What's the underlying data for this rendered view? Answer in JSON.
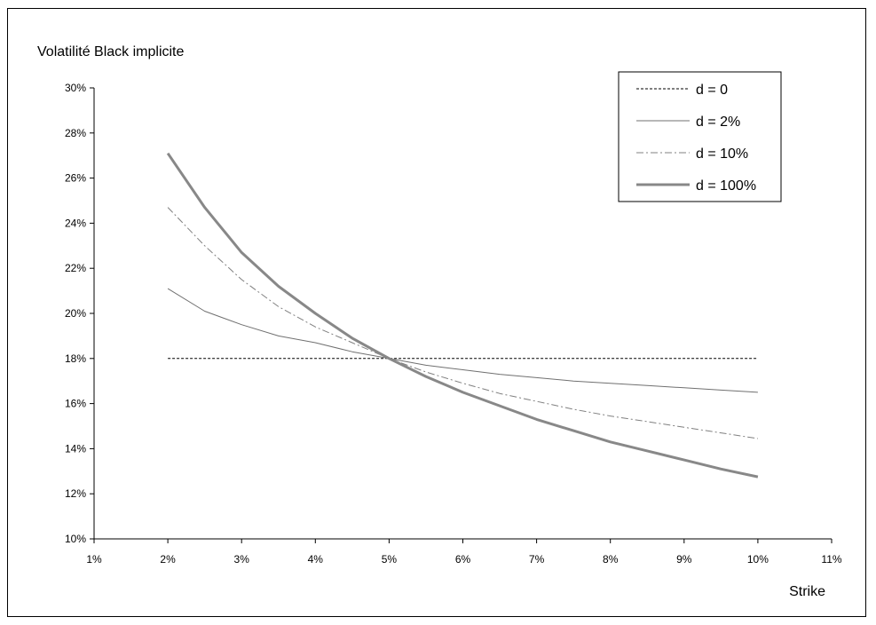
{
  "chart_data": {
    "type": "line",
    "title": "",
    "xlabel": "Strike",
    "ylabel": "Volatilité Black implicite",
    "xlim": [
      0.01,
      0.11
    ],
    "ylim": [
      0.1,
      0.3
    ],
    "x_ticks": [
      "1%",
      "2%",
      "3%",
      "4%",
      "5%",
      "6%",
      "7%",
      "8%",
      "9%",
      "10%",
      "11%"
    ],
    "y_ticks": [
      "10%",
      "12%",
      "14%",
      "16%",
      "18%",
      "20%",
      "22%",
      "24%",
      "26%",
      "28%",
      "30%"
    ],
    "grid": false,
    "legend_position": "top-right",
    "x": [
      0.02,
      0.025,
      0.03,
      0.035,
      0.04,
      0.045,
      0.05,
      0.055,
      0.06,
      0.065,
      0.07,
      0.075,
      0.08,
      0.085,
      0.09,
      0.095,
      0.1
    ],
    "series": [
      {
        "name": "d = 0",
        "style": "dotted",
        "color": "#000000",
        "values": [
          0.18,
          0.18,
          0.18,
          0.18,
          0.18,
          0.18,
          0.18,
          0.18,
          0.18,
          0.18,
          0.18,
          0.18,
          0.18,
          0.18,
          0.18,
          0.18,
          0.18
        ]
      },
      {
        "name": "d = 2%",
        "style": "thin",
        "color": "#707070",
        "values": [
          0.211,
          0.201,
          0.195,
          0.19,
          0.187,
          0.183,
          0.18,
          0.177,
          0.175,
          0.173,
          0.1715,
          0.17,
          0.169,
          0.168,
          0.167,
          0.166,
          0.165
        ]
      },
      {
        "name": "d = 10%",
        "style": "dashdot",
        "color": "#808080",
        "values": [
          0.247,
          0.23,
          0.215,
          0.203,
          0.194,
          0.187,
          0.18,
          0.174,
          0.169,
          0.1645,
          0.161,
          0.1575,
          0.1545,
          0.152,
          0.1495,
          0.147,
          0.1445
        ]
      },
      {
        "name": "d = 100%",
        "style": "thick",
        "color": "#888888",
        "values": [
          0.271,
          0.247,
          0.227,
          0.212,
          0.2,
          0.189,
          0.18,
          0.172,
          0.165,
          0.159,
          0.153,
          0.148,
          0.143,
          0.139,
          0.135,
          0.131,
          0.1275
        ]
      }
    ]
  }
}
